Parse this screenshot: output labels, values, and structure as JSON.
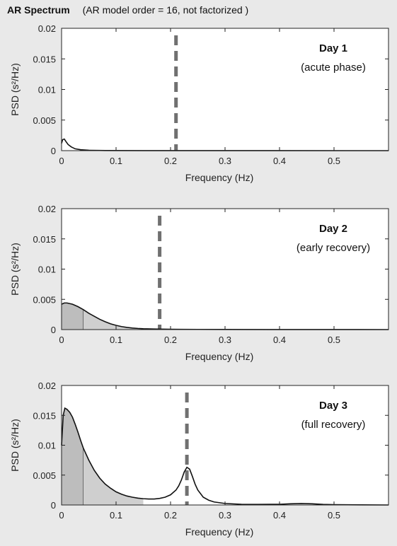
{
  "header": {
    "title": "AR Spectrum",
    "subtitle": "(AR model order = 16, not factorized )"
  },
  "colors": {
    "background": "#e9e9e9",
    "axes_bg": "#ffffff",
    "line": "#111111",
    "shade_vlf": "#bdbdbd",
    "shade_lf": "#cfcfcf",
    "marker": "#707070"
  },
  "chart_data": [
    {
      "type": "area",
      "xlabel": "Frequency (Hz)",
      "ylabel": "PSD (s²/Hz)",
      "xlim": [
        0,
        0.6
      ],
      "ylim": [
        0,
        0.02
      ],
      "xticks": [
        "0",
        "0.1",
        "0.2",
        "0.3",
        "0.4",
        "0.5"
      ],
      "yticks": [
        "0",
        "0.005",
        "0.01",
        "0.015",
        "0.02"
      ],
      "annotation": {
        "title": "Day 1",
        "subtitle": "(acute phase)"
      },
      "marker_freq": 0.21,
      "bands": [],
      "x": [
        0,
        0.002,
        0.005,
        0.008,
        0.012,
        0.018,
        0.025,
        0.035,
        0.05,
        0.08,
        0.15,
        0.3,
        0.6
      ],
      "y": [
        0.0012,
        0.0018,
        0.0019,
        0.0015,
        0.001,
        0.0006,
        0.0003,
        0.00015,
        6e-05,
        2e-05,
        1e-05,
        5e-06,
        0
      ]
    },
    {
      "type": "area",
      "xlabel": "Frequency (Hz)",
      "ylabel": "PSD (s²/Hz)",
      "xlim": [
        0,
        0.6
      ],
      "ylim": [
        0,
        0.02
      ],
      "xticks": [
        "0",
        "0.1",
        "0.2",
        "0.3",
        "0.4",
        "0.5"
      ],
      "yticks": [
        "0",
        "0.005",
        "0.01",
        "0.015",
        "0.02"
      ],
      "annotation": {
        "title": "Day 2",
        "subtitle": "(early recovery)"
      },
      "marker_freq": 0.18,
      "bands": [
        [
          0,
          0.04
        ],
        [
          0.04,
          0.15
        ]
      ],
      "x": [
        0,
        0.005,
        0.01,
        0.02,
        0.03,
        0.04,
        0.05,
        0.06,
        0.07,
        0.08,
        0.09,
        0.1,
        0.11,
        0.12,
        0.13,
        0.14,
        0.15,
        0.17,
        0.2,
        0.25,
        0.3,
        0.4,
        0.5,
        0.6
      ],
      "y": [
        0.0042,
        0.0044,
        0.0044,
        0.0042,
        0.0038,
        0.0033,
        0.0027,
        0.0022,
        0.0017,
        0.0013,
        0.00095,
        0.0007,
        0.0005,
        0.00036,
        0.00026,
        0.00019,
        0.00014,
        9e-05,
        5e-05,
        3e-05,
        2e-05,
        1e-05,
        1e-05,
        0
      ]
    },
    {
      "type": "area",
      "xlabel": "Frequency (Hz)",
      "ylabel": "PSD (s²/Hz)",
      "xlim": [
        0,
        0.6
      ],
      "ylim": [
        0,
        0.02
      ],
      "xticks": [
        "0",
        "0.1",
        "0.2",
        "0.3",
        "0.4",
        "0.5"
      ],
      "yticks": [
        "0",
        "0.005",
        "0.01",
        "0.015",
        "0.02"
      ],
      "annotation": {
        "title": "Day 3",
        "subtitle": "(full recovery)"
      },
      "marker_freq": 0.23,
      "bands": [
        [
          0,
          0.04
        ],
        [
          0.04,
          0.15
        ]
      ],
      "x": [
        0,
        0.003,
        0.006,
        0.01,
        0.015,
        0.02,
        0.025,
        0.03,
        0.035,
        0.04,
        0.05,
        0.06,
        0.07,
        0.08,
        0.09,
        0.1,
        0.11,
        0.12,
        0.13,
        0.14,
        0.15,
        0.16,
        0.17,
        0.18,
        0.19,
        0.2,
        0.21,
        0.215,
        0.22,
        0.225,
        0.23,
        0.235,
        0.24,
        0.245,
        0.25,
        0.26,
        0.27,
        0.28,
        0.3,
        0.33,
        0.36,
        0.4,
        0.42,
        0.44,
        0.46,
        0.48,
        0.5,
        0.55,
        0.6
      ],
      "y": [
        0.01,
        0.015,
        0.0162,
        0.016,
        0.0155,
        0.0147,
        0.0135,
        0.0122,
        0.0108,
        0.0095,
        0.0075,
        0.0058,
        0.0045,
        0.0035,
        0.0028,
        0.0022,
        0.0018,
        0.0015,
        0.0013,
        0.00115,
        0.00105,
        0.001,
        0.001,
        0.0011,
        0.0013,
        0.0017,
        0.0025,
        0.0032,
        0.0042,
        0.0055,
        0.0063,
        0.006,
        0.0048,
        0.0035,
        0.0025,
        0.0013,
        0.0008,
        0.0005,
        0.00025,
        0.00012,
        0.0001,
        0.00012,
        0.0002,
        0.00025,
        0.0002,
        0.0001,
        5e-05,
        2e-05,
        0
      ]
    }
  ]
}
